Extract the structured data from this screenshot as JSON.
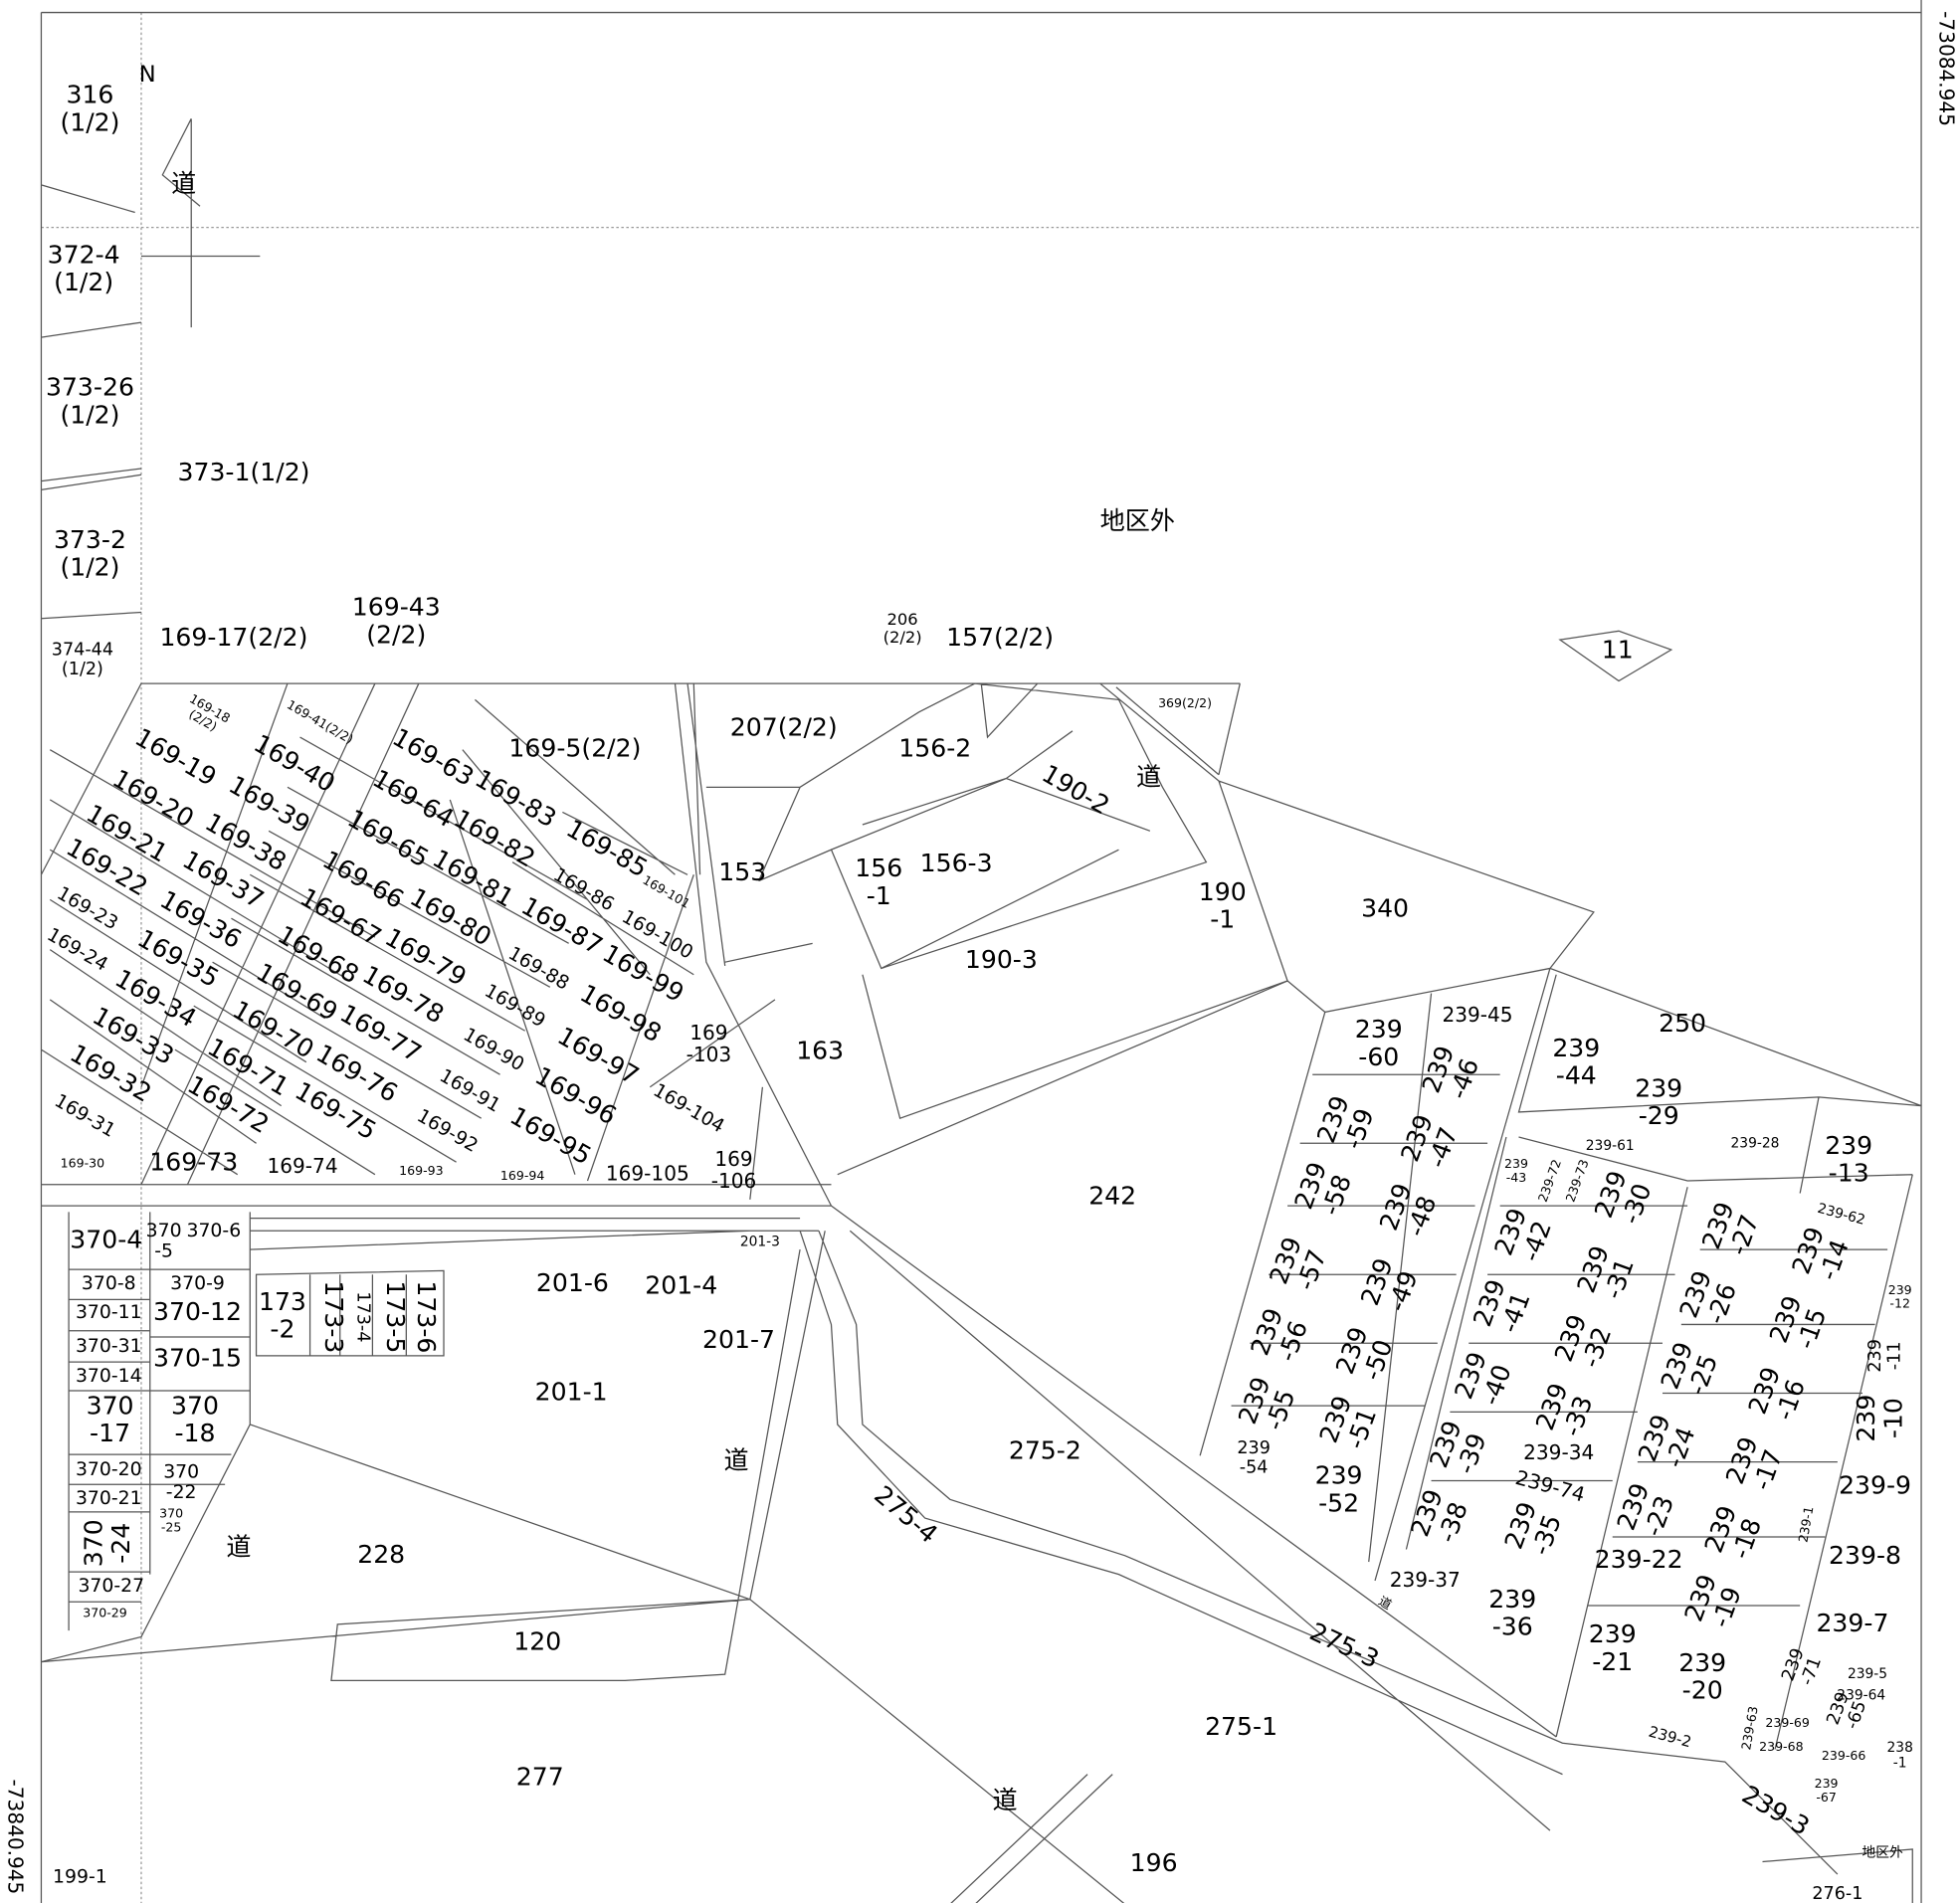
{
  "coordinates": [
    "-73084.945",
    "-73840.945"
  ],
  "north": "N",
  "labels": [
    [
      "316",
      "(1/2)"
    ],
    [
      "372-4",
      "(1/2)"
    ],
    [
      "373-26",
      "(1/2)"
    ],
    [
      "373-1(1/2)"
    ],
    [
      "373-2",
      "(1/2)"
    ],
    [
      "374-44",
      "(1/2)"
    ],
    [
      "169-17(2/2)"
    ],
    [
      "169-43",
      "(2/2)"
    ],
    [
      "206",
      "(2/2)"
    ],
    [
      "157(2/2)"
    ],
    [
      "地区外"
    ],
    [
      "11"
    ],
    [
      "207(2/2)"
    ],
    [
      "156-2"
    ],
    [
      "169-5(2/2)"
    ],
    [
      "190-2"
    ],
    [
      "道"
    ],
    [
      "369(2/2)"
    ],
    [
      "153"
    ],
    [
      "156",
      "-1"
    ],
    [
      "156-3"
    ],
    [
      "190-3"
    ],
    [
      "190",
      "-1"
    ],
    [
      "340"
    ],
    [
      "250"
    ],
    [
      "163"
    ],
    [
      "239",
      "-60"
    ],
    [
      "239-45"
    ],
    [
      "239",
      "-44"
    ],
    [
      "239",
      "-29"
    ],
    [
      "239",
      "-46"
    ],
    [
      "239",
      "-59"
    ],
    [
      "239",
      "-47"
    ],
    [
      "239-28"
    ],
    [
      "239",
      "-13"
    ],
    [
      "242"
    ],
    [
      "239",
      "-58"
    ],
    [
      "239",
      "-48"
    ],
    [
      "239",
      "-57"
    ],
    [
      "239",
      "-49"
    ],
    [
      "239",
      "-30"
    ],
    [
      "239",
      "-42"
    ],
    [
      "239",
      "-31"
    ],
    [
      "239",
      "-27"
    ],
    [
      "239",
      "-14"
    ],
    [
      "239",
      "-56"
    ],
    [
      "239",
      "-50"
    ],
    [
      "239",
      "-41"
    ],
    [
      "239",
      "-32"
    ],
    [
      "239",
      "-26"
    ],
    [
      "239",
      "-15"
    ],
    [
      "239",
      "-55"
    ],
    [
      "239",
      "-51"
    ],
    [
      "239",
      "-40"
    ],
    [
      "239",
      "-33"
    ],
    [
      "239",
      "-25"
    ],
    [
      "239",
      "-16"
    ],
    [
      "239",
      "-10"
    ],
    [
      "239",
      "-11"
    ],
    [
      "239",
      "-12"
    ],
    [
      "239",
      "-54"
    ],
    [
      "239",
      "-52"
    ],
    [
      "239",
      "-39"
    ],
    [
      "239-34"
    ],
    [
      "239",
      "-24"
    ],
    [
      "239",
      "-17"
    ],
    [
      "239-9"
    ],
    [
      "239-74"
    ],
    [
      "239",
      "-38"
    ],
    [
      "239",
      "-35"
    ],
    [
      "239",
      "-23"
    ],
    [
      "239",
      "-18"
    ],
    [
      "239-22"
    ],
    [
      "239-8"
    ],
    [
      "239",
      "-19"
    ],
    [
      "239-37"
    ],
    [
      "239",
      "-36"
    ],
    [
      "239-7"
    ],
    [
      "239",
      "-21"
    ],
    [
      "239",
      "-20"
    ],
    [
      "239-3"
    ],
    [
      "238",
      "-1"
    ],
    [
      "239-2"
    ],
    [
      "地区外"
    ],
    [
      "276-1"
    ],
    [
      "196"
    ],
    [
      "道"
    ],
    [
      "277"
    ],
    [
      "275-1"
    ],
    [
      "120"
    ],
    [
      "275-3"
    ],
    [
      "275-4"
    ],
    [
      "275-2"
    ],
    [
      "道"
    ],
    [
      "228"
    ],
    [
      "道"
    ],
    [
      "201-1"
    ],
    [
      "201-7"
    ],
    [
      "201-6"
    ],
    [
      "201-4"
    ],
    [
      "201-3"
    ],
    [
      "173",
      "-2"
    ],
    [
      "173-3"
    ],
    [
      "173-4"
    ],
    [
      "173-5"
    ],
    [
      "173-6"
    ],
    [
      "370-4"
    ],
    [
      "370",
      "-5"
    ],
    [
      "370-6"
    ],
    [
      "370-8"
    ],
    [
      "370-9"
    ],
    [
      "370-11"
    ],
    [
      "370-12"
    ],
    [
      "370-31"
    ],
    [
      "370-15"
    ],
    [
      "370-14"
    ],
    [
      "370",
      "-17"
    ],
    [
      "370",
      "-18"
    ],
    [
      "370-20"
    ],
    [
      "370",
      "-22"
    ],
    [
      "370-21"
    ],
    [
      "370",
      "-25"
    ],
    [
      "370",
      "-24"
    ],
    [
      "370-27"
    ],
    [
      "370-29"
    ],
    [
      "199-1"
    ],
    [
      "169-19"
    ],
    [
      "169-40"
    ],
    [
      "169-20"
    ],
    [
      "169-39"
    ],
    [
      "169-21"
    ],
    [
      "169-38"
    ],
    [
      "169-22"
    ],
    [
      "169-37"
    ],
    [
      "169-23"
    ],
    [
      "169-36"
    ],
    [
      "169-24"
    ],
    [
      "169-35"
    ],
    [
      "169-34"
    ],
    [
      "169-33"
    ],
    [
      "169-32"
    ],
    [
      "169-31"
    ],
    [
      "169-30"
    ],
    [
      "169-73"
    ],
    [
      "169-72"
    ],
    [
      "169-74"
    ],
    [
      "169-71"
    ],
    [
      "169-70"
    ],
    [
      "169-69"
    ],
    [
      "169-68"
    ],
    [
      "169-67"
    ],
    [
      "169-66"
    ],
    [
      "169-65"
    ],
    [
      "169-64"
    ],
    [
      "169-63"
    ],
    [
      "169-83"
    ],
    [
      "169-82"
    ],
    [
      "169-81"
    ],
    [
      "169-80"
    ],
    [
      "169-79"
    ],
    [
      "169-78"
    ],
    [
      "169-77"
    ],
    [
      "169-76"
    ],
    [
      "169-75"
    ],
    [
      "169-85"
    ],
    [
      "169-86"
    ],
    [
      "169-87"
    ],
    [
      "169-88"
    ],
    [
      "169-89"
    ],
    [
      "169-90"
    ],
    [
      "169-91"
    ],
    [
      "169-92"
    ],
    [
      "169-101"
    ],
    [
      "169-100"
    ],
    [
      "169-99"
    ],
    [
      "169-98"
    ],
    [
      "169-97"
    ],
    [
      "169-96"
    ],
    [
      "169-95"
    ],
    [
      "169",
      "-103"
    ],
    [
      "169-104"
    ],
    [
      "169-105"
    ],
    [
      "169",
      "-106"
    ],
    [
      "169-93"
    ],
    [
      "169-94"
    ],
    [
      "169-18",
      "(2/2)"
    ],
    [
      "169-41(2/2)"
    ],
    [
      "239",
      "-43"
    ],
    [
      "239-72"
    ],
    [
      "239-73"
    ],
    [
      "239-61"
    ],
    [
      "239-62"
    ],
    [
      "239-1"
    ],
    [
      "239",
      "-71"
    ],
    [
      "239-5"
    ],
    [
      "239-64"
    ],
    [
      "239",
      "-65"
    ],
    [
      "239-69"
    ],
    [
      "239-63"
    ],
    [
      "239-68"
    ],
    [
      "239-66"
    ],
    [
      "239",
      "-67"
    ],
    [
      "道"
    ],
    [
      "道"
    ]
  ]
}
